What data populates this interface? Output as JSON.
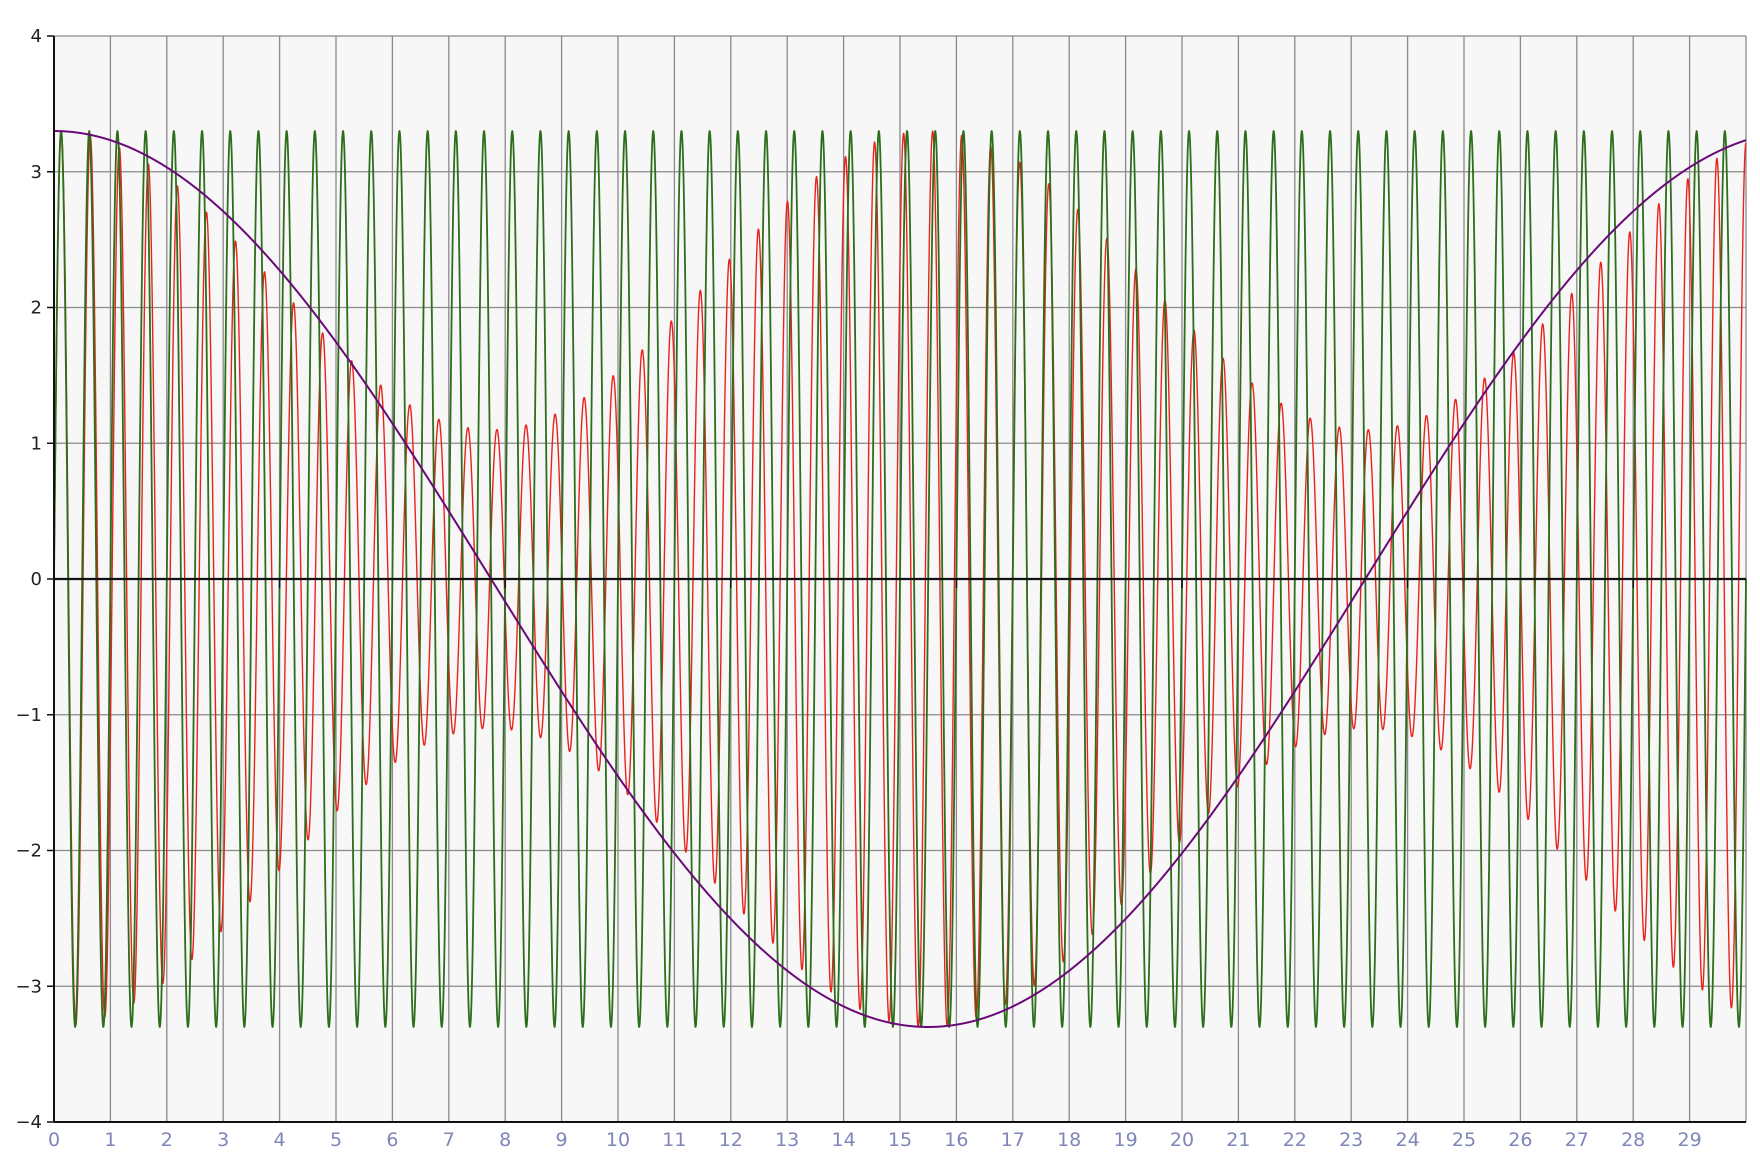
{
  "chart_data": {
    "type": "line",
    "title": "",
    "xlabel": "",
    "ylabel": "",
    "xlim": [
      0,
      30
    ],
    "ylim": [
      -4,
      4
    ],
    "x_ticks": [
      "0",
      "1",
      "2",
      "3",
      "4",
      "5",
      "6",
      "7",
      "8",
      "9",
      "10",
      "11",
      "12",
      "13",
      "14",
      "15",
      "16",
      "17",
      "18",
      "19",
      "20",
      "21",
      "22",
      "23",
      "24",
      "25",
      "26",
      "27",
      "28",
      "29"
    ],
    "y_ticks": [
      "4",
      "3",
      "2",
      "1",
      "0",
      "−1",
      "−2",
      "−3",
      "−4"
    ],
    "grid": true,
    "legend": "none",
    "background_color": "#f7f7f7",
    "series": [
      {
        "color": "#e8231c",
        "amplitude": 3.3,
        "amplitude_note": "upper envelope 3.3 → ~1.1 minimum near x≈8 and x≈24, back to 3.3 at x≈15.5",
        "period": 0.515,
        "x_range": [
          0,
          30
        ]
      },
      {
        "color": "#2c6e1a",
        "amplitude": 3.3,
        "period": 0.5,
        "x_range": [
          0,
          30
        ]
      },
      {
        "color": "#6a0a78",
        "amplitude": 3.3,
        "period": 31,
        "peak_x": 0,
        "trough_x": 15.5,
        "x_range": [
          0,
          30
        ]
      }
    ]
  }
}
